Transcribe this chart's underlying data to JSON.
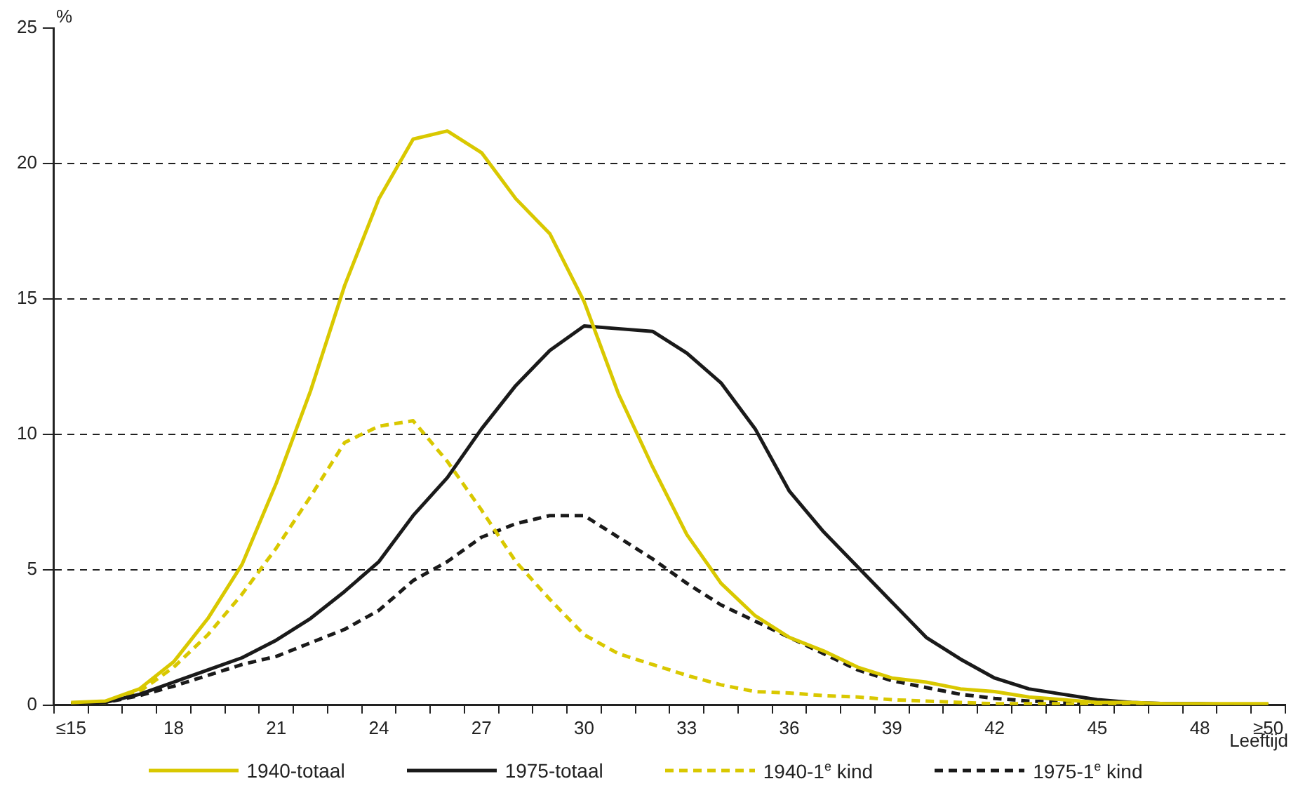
{
  "chart_data": {
    "type": "line",
    "ylabel": "%",
    "xlabel": "Leeftijd",
    "categories": [
      "≤15",
      null,
      null,
      "18",
      null,
      null,
      "21",
      null,
      null,
      "24",
      null,
      null,
      "27",
      null,
      null,
      "30",
      null,
      null,
      "33",
      null,
      null,
      "36",
      null,
      null,
      "39",
      null,
      null,
      "42",
      null,
      null,
      "45",
      null,
      null,
      "48",
      null,
      "≥50"
    ],
    "ylim": [
      0,
      25
    ],
    "yticks": [
      0,
      5,
      10,
      15,
      20,
      25
    ],
    "grid": "y",
    "legend": "bottom",
    "marker": "none",
    "series": [
      {
        "name": "1940-totaal",
        "color": "#d9c800",
        "line_style": "solid",
        "values": [
          0.1,
          0.15,
          0.6,
          1.6,
          3.2,
          5.2,
          8.2,
          11.6,
          15.5,
          18.7,
          20.9,
          21.2,
          20.4,
          18.7,
          17.4,
          14.9,
          11.5,
          8.8,
          6.3,
          4.5,
          3.3,
          2.5,
          2.0,
          1.4,
          1.0,
          0.85,
          0.6,
          0.5,
          0.3,
          0.2,
          0.1,
          0.1,
          0.05,
          0.05,
          0.05,
          0.05
        ]
      },
      {
        "name": "1975-totaal",
        "color": "#1a1a1a",
        "line_style": "solid",
        "values": [
          0.05,
          0.1,
          0.4,
          0.85,
          1.3,
          1.75,
          2.4,
          3.2,
          4.2,
          5.3,
          7.0,
          8.4,
          10.2,
          11.8,
          13.1,
          14.0,
          13.9,
          13.8,
          13.0,
          11.9,
          10.2,
          7.9,
          6.4,
          5.1,
          3.8,
          2.5,
          1.7,
          1.0,
          0.6,
          0.4,
          0.2,
          0.1,
          0.05,
          0.05,
          0.02,
          0.02
        ]
      },
      {
        "name": "1940-1$^{e}$ kind",
        "color": "#d9c800",
        "line_style": "dashed",
        "values": [
          0.05,
          0.1,
          0.5,
          1.4,
          2.6,
          4.1,
          5.8,
          7.7,
          9.7,
          10.3,
          10.5,
          9.0,
          7.2,
          5.3,
          3.9,
          2.6,
          1.9,
          1.5,
          1.1,
          0.75,
          0.5,
          0.45,
          0.35,
          0.3,
          0.2,
          0.15,
          0.1,
          0.05,
          0.05,
          0.05,
          0.02,
          0.02,
          0.02,
          0.02,
          0.02,
          0.02
        ]
      },
      {
        "name": "1975-1$^{e}$ kind",
        "color": "#1a1a1a",
        "line_style": "dashed",
        "values": [
          0.05,
          0.1,
          0.35,
          0.7,
          1.1,
          1.5,
          1.8,
          2.3,
          2.8,
          3.5,
          4.6,
          5.3,
          6.2,
          6.7,
          7.0,
          7.0,
          6.2,
          5.4,
          4.5,
          3.7,
          3.1,
          2.5,
          1.9,
          1.3,
          0.9,
          0.65,
          0.4,
          0.25,
          0.15,
          0.1,
          0.05,
          0.05,
          0.02,
          0.02,
          0.02,
          0.02
        ]
      }
    ]
  }
}
